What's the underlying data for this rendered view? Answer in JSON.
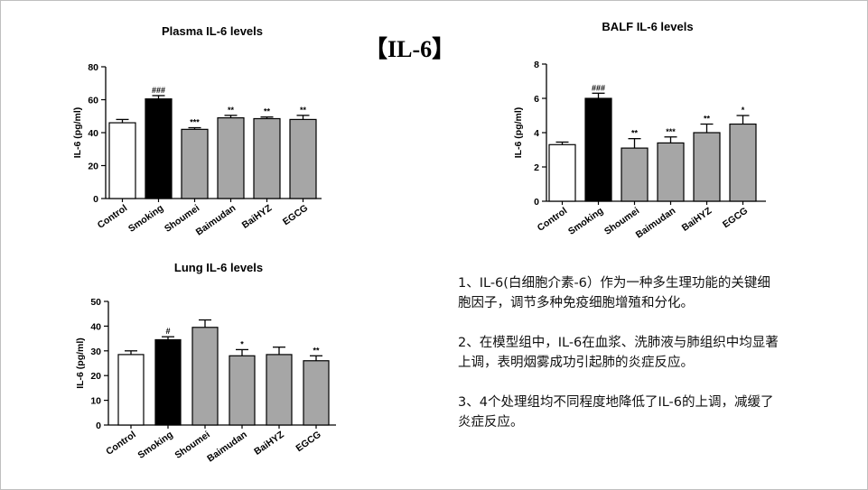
{
  "slide_title": "【IL-6】",
  "notes": [
    "1、IL-6(白细胞介素-6）作为一种多生理功能的关键细胞因子，调节多种免疫细胞增殖和分化。",
    "2、在模型组中，IL-6在血浆、洗肺液与肺组织中均显著上调，表明烟雾成功引起肺的炎症反应。",
    "3、4个处理组均不同程度地降低了IL-6的上调，减缓了炎症反应。"
  ],
  "colors": {
    "white_bar": "#ffffff",
    "black_bar": "#000000",
    "gray_bar": "#a6a6a6",
    "axis": "#000000"
  },
  "chart_data": [
    {
      "type": "bar",
      "title": "Plasma IL-6 levels",
      "ylabel": "IL-6 (pg/ml)",
      "categories": [
        "Control",
        "Smoking",
        "Shoumei",
        "Baimudan",
        "BaiHYZ",
        "EGCG"
      ],
      "values": [
        46,
        60.5,
        42,
        49,
        48.5,
        48
      ],
      "errors": [
        2,
        2,
        1,
        1.5,
        1,
        2.5
      ],
      "annotations": [
        "",
        "###",
        "***",
        "**",
        "**",
        "**"
      ],
      "bar_colors": [
        "white",
        "black",
        "gray",
        "gray",
        "gray",
        "gray"
      ],
      "ylim": [
        0,
        80
      ],
      "yticks": [
        0,
        20,
        40,
        60,
        80
      ]
    },
    {
      "type": "bar",
      "title": "BALF IL-6 levels",
      "ylabel": "IL-6 (pg/ml)",
      "categories": [
        "Control",
        "Smoking",
        "Shoumei",
        "Baimudan",
        "BaiHYZ",
        "EGCG"
      ],
      "values": [
        3.3,
        6.0,
        3.1,
        3.4,
        4.0,
        4.5
      ],
      "errors": [
        0.15,
        0.3,
        0.55,
        0.35,
        0.5,
        0.5
      ],
      "annotations": [
        "",
        "###",
        "**",
        "***",
        "**",
        "*"
      ],
      "bar_colors": [
        "white",
        "black",
        "gray",
        "gray",
        "gray",
        "gray"
      ],
      "ylim": [
        0,
        8
      ],
      "yticks": [
        0,
        2,
        4,
        6,
        8
      ]
    },
    {
      "type": "bar",
      "title": "Lung IL-6 levels",
      "ylabel": "IL-6 (pg/ml)",
      "categories": [
        "Control",
        "Smoking",
        "Shoumei",
        "Baimudan",
        "BaiHYZ",
        "EGCG"
      ],
      "values": [
        28.5,
        34.5,
        39.5,
        28,
        28.5,
        26
      ],
      "errors": [
        1.5,
        1.2,
        3,
        2.5,
        3,
        2
      ],
      "annotations": [
        "",
        "#",
        "",
        "*",
        "",
        "**"
      ],
      "bar_colors": [
        "white",
        "black",
        "gray",
        "gray",
        "gray",
        "gray"
      ],
      "ylim": [
        0,
        50
      ],
      "yticks": [
        0,
        10,
        20,
        30,
        40,
        50
      ]
    }
  ]
}
